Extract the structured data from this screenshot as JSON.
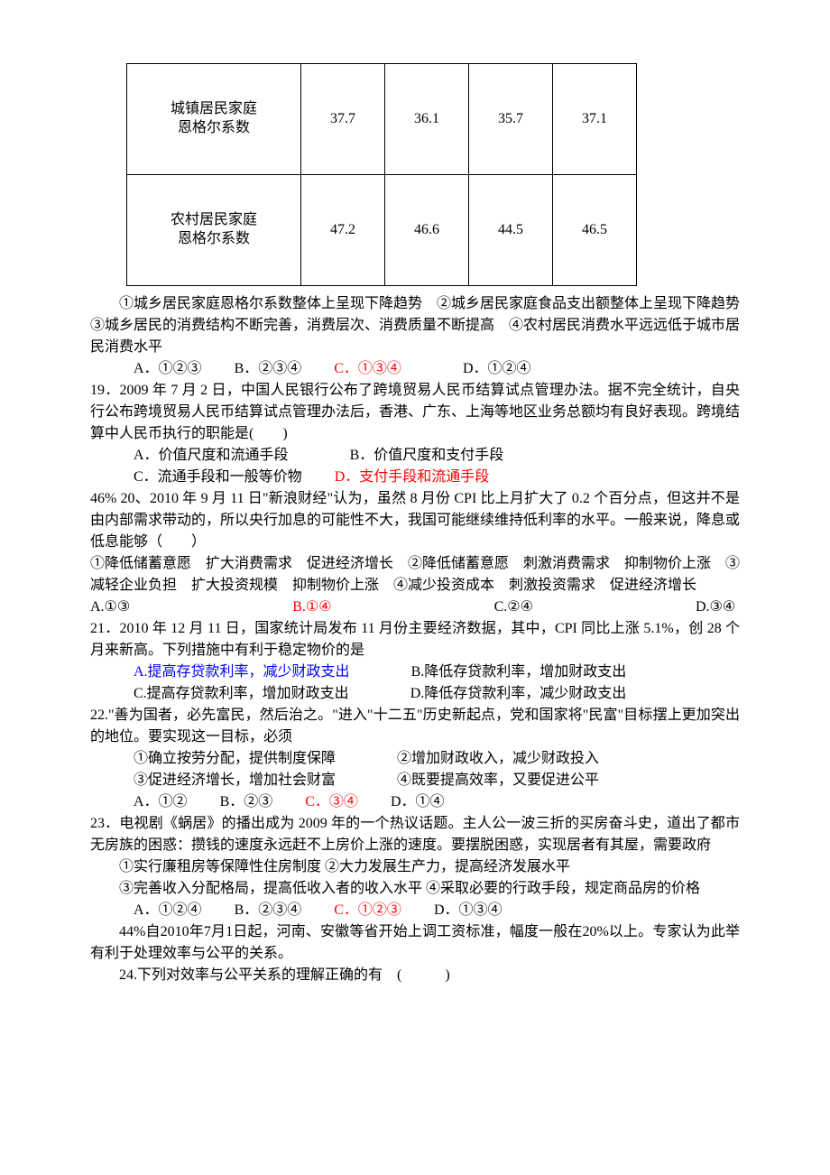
{
  "table": {
    "row1_label_l1": "城镇居民家庭",
    "row1_label_l2": "恩格尔系数",
    "row1_vals": [
      "37.7",
      "36.1",
      "35.7",
      "37.1"
    ],
    "row2_label_l1": "农村居民家庭",
    "row2_label_l2": "恩格尔系数",
    "row2_vals": [
      "47.2",
      "46.6",
      "44.5",
      "46.5"
    ]
  },
  "q18": {
    "stem": "①城乡居民家庭恩格尔系数整体上呈现下降趋势　②城乡居民家庭食品支出额整体上呈现下降趋势　③城乡居民的消费结构不断完善，消费层次、消费质量不断提高　④农村居民消费水平远远低于城市居民消费水平",
    "choices": {
      "a": "A．①②③",
      "b": "B．②③④",
      "c": "C．①③④",
      "d": "D．①②④"
    }
  },
  "q19": {
    "stem": "19．2009 年 7 月 2 日，中国人民银行公布了跨境贸易人民币结算试点管理办法。据不完全统计，自央行公布跨境贸易人民币结算试点管理办法后，香港、广东、上海等地区业务总额均有良好表现。跨境结算中人民币执行的职能是(　　)",
    "choices": {
      "a": "A．价值尺度和流通手段",
      "b": "B．价值尺度和支付手段",
      "c": "C．流通手段和一般等价物",
      "d": "D．支付手段和流通手段"
    }
  },
  "q20": {
    "stem1": "46% 20、2010 年 9 月 11 日\"新浪财经\"认为，虽然 8 月份 CPI 比上月扩大了 0.2 个百分点，但这并不是由内部需求带动的，所以央行加息的可能性不大，我国可能继续维持低利率的水平。一般来说，降息或低息能够（　　）",
    "stem2": "①降低储蓄意愿　扩大消费需求　促进经济增长　②降低储蓄意愿　刺激消费需求　抑制物价上涨　③减轻企业负担　扩大投资规模　抑制物价上涨　④减少投资成本　刺激投资需求　促进经济增长",
    "choices": {
      "a": "A.①③",
      "b": "B.①④",
      "c": "C.②④",
      "d": "D.③④"
    }
  },
  "q21": {
    "stem": "21．2010 年 12 月 11 日，国家统计局发布 11 月份主要经济数据，其中，CPI 同比上涨 5.1%，创 28 个月来新高。下列措施中有利于稳定物价的是",
    "choices": {
      "a": "A.提高存贷款利率，减少财政支出",
      "b": "B.降低存贷款利率，增加财政支出",
      "c": "C.提高存贷款利率，增加财政支出",
      "d": "D.降低存贷款利率，减少财政支出"
    }
  },
  "q22": {
    "stem": "22.\"善为国者，必先富民，然后治之。\"进入\"十二五\"历史新起点，党和国家将\"民富\"目标摆上更加突出的地位。要实现这一目标，必须",
    "opts_l1a": "①确立按劳分配，提供制度保障",
    "opts_l1b": "②增加财政收入，减少财政投入",
    "opts_l2a": "③促进经济增长，增加社会财富",
    "opts_l2b": "④既要提高效率，又要促进公平",
    "choices": {
      "a": "A．①②",
      "b": "B．②③",
      "c": "C．③④",
      "d": "D．①④"
    }
  },
  "q23": {
    "stem": "23．电视剧《蜗居》的播出成为 2009 年的一个热议话题。主人公一波三折的买房奋斗史，道出了都市无房族的困惑：攒钱的速度永远赶不上房价上涨的速度。要摆脱困惑，实现居者有其屋，需要政府",
    "opts1": "①实行廉租房等保障性住房制度 ②大力发展生产力，提高经济发展水平",
    "opts2": "③完善收入分配格局，提高低收入者的收入水平 ④采取必要的行政手段，规定商品房的价格",
    "choices": {
      "a": "A．①②④",
      "b": "B．②③④",
      "c": "C．①②③",
      "d": "D．①③④"
    }
  },
  "q24": {
    "intro": "44%自2010年7月1日起，河南、安徽等省开始上调工资标准，幅度一般在20%以上。专家认为此举有利于处理效率与公平的关系。",
    "stem": "24.下列对效率与公平关系的理解正确的有　(　　　)"
  }
}
